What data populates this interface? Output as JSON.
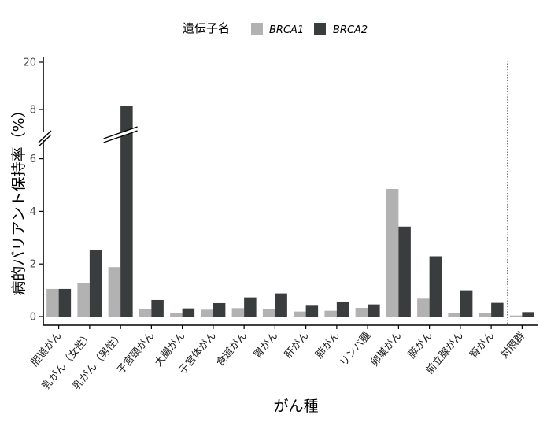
{
  "chart_data": {
    "type": "bar",
    "xlabel": "がん種",
    "ylabel": "病的バリアント保持率（%）",
    "legend": {
      "title": "遺伝子名",
      "placement": "top",
      "entries": [
        "BRCA1",
        "BRCA2"
      ]
    },
    "categories": [
      "胆道がん",
      "乳がん（女性）",
      "乳がん（男性）",
      "子宮頸がん",
      "大腸がん",
      "子宮体がん",
      "食道がん",
      "胃がん",
      "肝がん",
      "肺がん",
      "リンパ腫",
      "卵巣がん",
      "膵がん",
      "前立腺がん",
      "腎がん",
      "対照群"
    ],
    "series": [
      {
        "name": "BRCA1",
        "color": "#b2b2b2",
        "values": [
          1.05,
          1.28,
          1.88,
          0.27,
          0.14,
          0.26,
          0.32,
          0.27,
          0.19,
          0.22,
          0.33,
          4.85,
          0.68,
          0.14,
          0.12,
          0.04
        ]
      },
      {
        "name": "BRCA2",
        "color": "#3a3d3e",
        "values": [
          1.05,
          2.53,
          8.85,
          0.63,
          0.31,
          0.51,
          0.73,
          0.88,
          0.44,
          0.57,
          0.46,
          3.42,
          2.29,
          1.0,
          0.52,
          0.17
        ]
      }
    ],
    "ylim_lower": [
      0,
      6.6
    ],
    "ylim_upper": [
      7.4,
      20
    ],
    "yticks_lower": [
      0,
      2,
      4,
      6
    ],
    "yticks_upper": [
      8,
      20
    ],
    "axis_break": "between 6 and 8",
    "reference_line": "dotted vertical line separating 対照群",
    "grid": false
  }
}
